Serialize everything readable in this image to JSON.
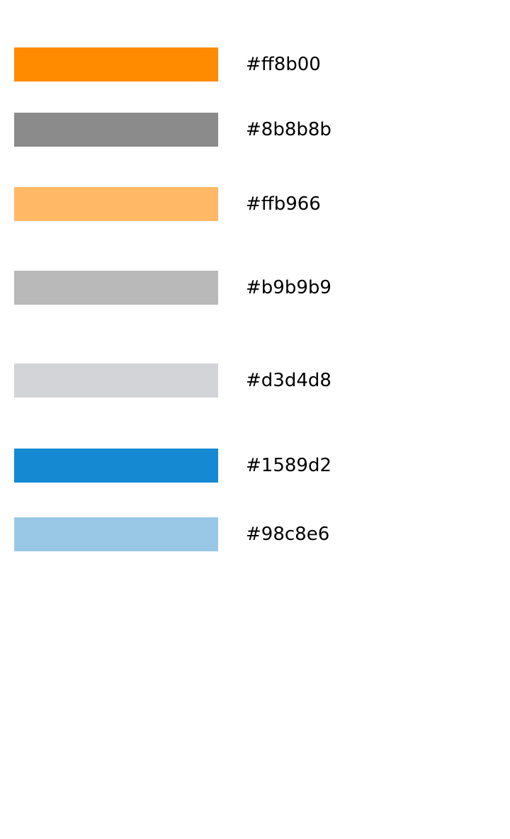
{
  "swatches": [
    {
      "color": "#ff8b00",
      "label": "#ff8b00"
    },
    {
      "color": "#8b8b8b",
      "label": "#8b8b8b"
    },
    {
      "color": "#ffb966",
      "label": "#ffb966"
    },
    {
      "color": "#b9b9b9",
      "label": "#b9b9b9"
    },
    {
      "color": "#d3d4d8",
      "label": "#d3d4d8"
    },
    {
      "color": "#1589d2",
      "label": "#1589d2"
    },
    {
      "color": "#98c8e6",
      "label": "#98c8e6"
    }
  ]
}
